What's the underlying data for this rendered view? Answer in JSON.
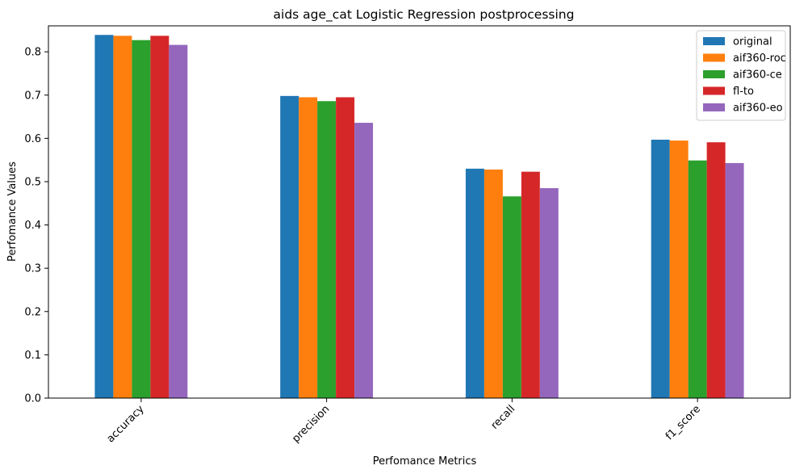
{
  "chart_data": {
    "type": "bar",
    "title": "aids age_cat Logistic Regression postprocessing",
    "xlabel": "Perfomance Metrics",
    "ylabel": "Perfomance Values",
    "categories": [
      "accuracy",
      "precision",
      "recall",
      "f1_score"
    ],
    "ylim": [
      0,
      0.86
    ],
    "yticks": [
      "0.0",
      "0.1",
      "0.2",
      "0.3",
      "0.4",
      "0.5",
      "0.6",
      "0.7",
      "0.8"
    ],
    "grid": false,
    "legend_position": "top-right",
    "series": [
      {
        "name": "original",
        "color": "#1f77b4",
        "values": [
          0.839,
          0.698,
          0.53,
          0.597
        ]
      },
      {
        "name": "aif360-roc",
        "color": "#ff7f0e",
        "values": [
          0.837,
          0.695,
          0.528,
          0.595
        ]
      },
      {
        "name": "aif360-ce",
        "color": "#2ca02c",
        "values": [
          0.827,
          0.686,
          0.466,
          0.549
        ]
      },
      {
        "name": "fl-to",
        "color": "#d62728",
        "values": [
          0.837,
          0.695,
          0.523,
          0.591
        ]
      },
      {
        "name": "aif360-eo",
        "color": "#9467bd",
        "values": [
          0.816,
          0.636,
          0.485,
          0.543
        ]
      }
    ]
  }
}
